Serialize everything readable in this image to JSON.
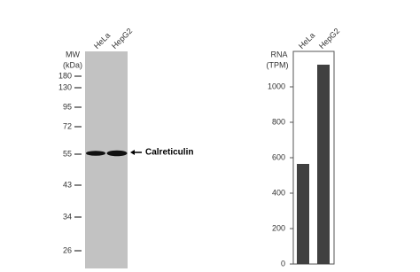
{
  "blot": {
    "mw_title": "MW",
    "mw_unit": "(kDa)",
    "lanes": [
      "HeLa",
      "HepG2"
    ],
    "markers": [
      180,
      130,
      95,
      72,
      55,
      43,
      34,
      26
    ],
    "band_label": "Calreticulin"
  },
  "chart_data": {
    "type": "bar",
    "title": "RNA",
    "subtitle": "(TPM)",
    "categories": [
      "HeLa",
      "HepG2"
    ],
    "values": [
      565,
      1125
    ],
    "color": "#404040",
    "ylim": [
      0,
      1200
    ],
    "yticks": [
      0,
      200,
      400,
      600,
      800,
      1000
    ]
  }
}
